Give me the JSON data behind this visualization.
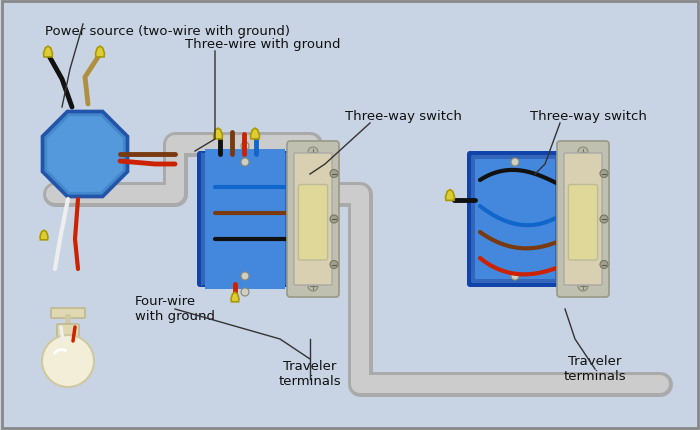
{
  "bg_color": "#c8d4e4",
  "border_color": "#888888",
  "labels": {
    "power_source": "Power source (two-wire with ground)",
    "three_wire": "Three-wire with ground",
    "four_wire": "Four-wire\nwith ground",
    "three_way_switch1": "Three-way switch",
    "three_way_switch2": "Three-way switch",
    "traveler1": "Traveler\nterminals",
    "traveler2": "Traveler\nterminals"
  },
  "wire_colors": {
    "black": "#111111",
    "white": "#eeeeee",
    "red": "#cc2200",
    "ground": "#b09040",
    "blue": "#1166cc",
    "brown": "#7a3a10"
  },
  "box_fill_outer": "#3366bb",
  "box_fill_inner": "#4488dd",
  "box_edge": "#1144aa",
  "switch_strap": "#c0c0b0",
  "switch_body": "#d8d0b0",
  "switch_paddle": "#e0d898",
  "conduit_outer": "#aaaaaa",
  "conduit_inner": "#cccccc",
  "wire_nut": "#ddcc33",
  "wire_nut_edge": "#aa9900",
  "bulb_globe": "#f2eed8",
  "bulb_base": "#e0d8b8",
  "oct_outer": "#2255aa",
  "oct_fill": "#4488cc",
  "oct_inner": "#5599dd"
}
